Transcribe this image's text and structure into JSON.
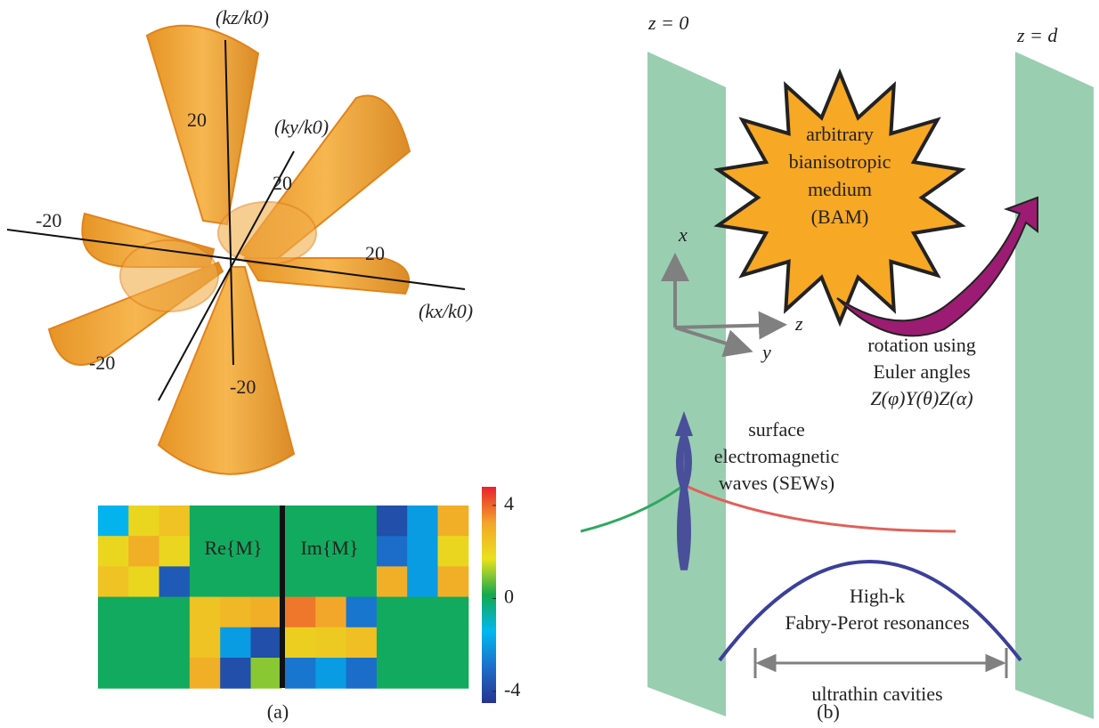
{
  "panel_a": {
    "caption": "(a)",
    "axes": {
      "kz": {
        "label": "(kz/k0)",
        "ticks": [
          "20",
          "-20"
        ]
      },
      "ky": {
        "label": "(ky/k0)",
        "ticks": [
          "20",
          "-20"
        ]
      },
      "kx": {
        "label": "(kx/k0)",
        "ticks": [
          "20",
          "-20"
        ]
      }
    },
    "heatmap": {
      "re_label": "Re{M}",
      "im_label": "Im{M}",
      "clim": [
        -4.5,
        4.8
      ],
      "cticks": [
        4,
        0,
        -4
      ],
      "colormap": [
        "#26348f",
        "#1b6fcb",
        "#00b8f0",
        "#14a84e",
        "#e9e21c",
        "#f3a52a",
        "#e8222c"
      ],
      "re": [
        [
          -1.5,
          2,
          2.5,
          0,
          0,
          0
        ],
        [
          2,
          3,
          2,
          0,
          0,
          0
        ],
        [
          2.5,
          2,
          -3.5,
          0,
          0,
          0
        ],
        [
          0,
          0,
          0,
          2.5,
          2.8,
          3
        ],
        [
          0,
          0,
          0,
          2.5,
          -2,
          -3.8
        ],
        [
          0,
          0,
          0,
          3,
          -3.8,
          1
        ]
      ],
      "im": [
        [
          0,
          0,
          0,
          -3.8,
          -2,
          3
        ],
        [
          0,
          0,
          0,
          -3,
          -2,
          2
        ],
        [
          0,
          0,
          0,
          3,
          -2,
          3
        ],
        [
          3.8,
          3.2,
          -2.8,
          0,
          0,
          0
        ],
        [
          2.2,
          2.3,
          2.6,
          0,
          0,
          0
        ],
        [
          -2.8,
          -2,
          -3,
          0,
          0,
          0
        ]
      ]
    }
  },
  "panel_b": {
    "caption": "(b)",
    "z0": "z = 0",
    "zd": "z = d",
    "star": [
      "arbitrary",
      "bianisotropic",
      "medium",
      "(BAM)"
    ],
    "axes": {
      "x": "x",
      "y": "y",
      "z": "z"
    },
    "rotation": [
      "rotation using",
      "Euler angles",
      "Z(φ)Y(θ)Z(α)"
    ],
    "sew": [
      "surface",
      "electromagnetic",
      "waves (SEWs)"
    ],
    "fp": [
      "High-k",
      "Fabry-Perot resonances"
    ],
    "cavity": "ultrathin cavities"
  }
}
